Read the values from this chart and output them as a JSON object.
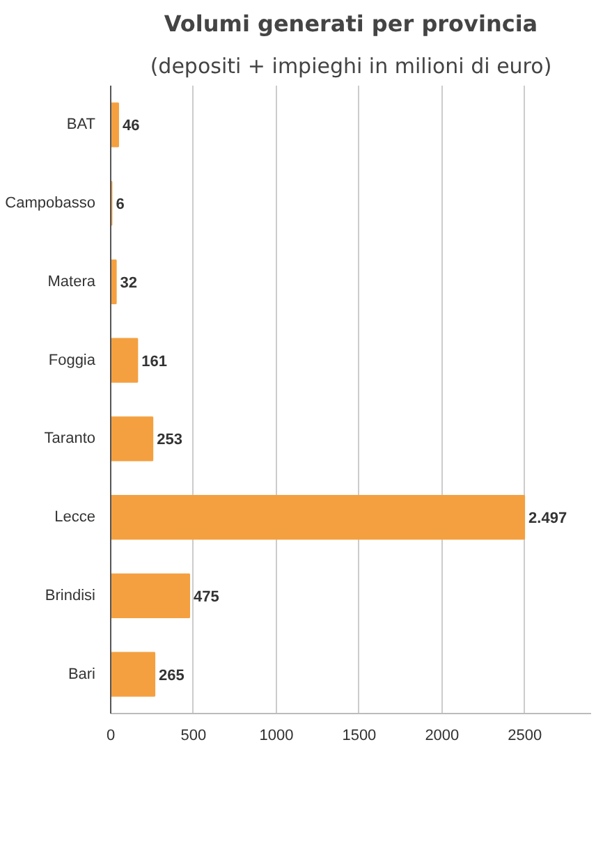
{
  "chart_data": {
    "type": "bar",
    "orientation": "horizontal",
    "title": "Volumi generati per provincia",
    "subtitle": "(depositi + impieghi in milioni di euro)",
    "categories": [
      "BAT",
      "Campobasso",
      "Matera",
      "Foggia",
      "Taranto",
      "Lecce",
      "Brindisi",
      "Bari"
    ],
    "values": [
      46,
      6,
      32,
      161,
      253,
      2497,
      475,
      265
    ],
    "value_labels": [
      "46",
      "6",
      "32",
      "161",
      "253",
      "2.497",
      "475",
      "265"
    ],
    "color": "#f4a040",
    "xlim": [
      0,
      2900
    ],
    "xticks": [
      0,
      500,
      1000,
      1500,
      2000,
      2500
    ],
    "grid": "x"
  }
}
